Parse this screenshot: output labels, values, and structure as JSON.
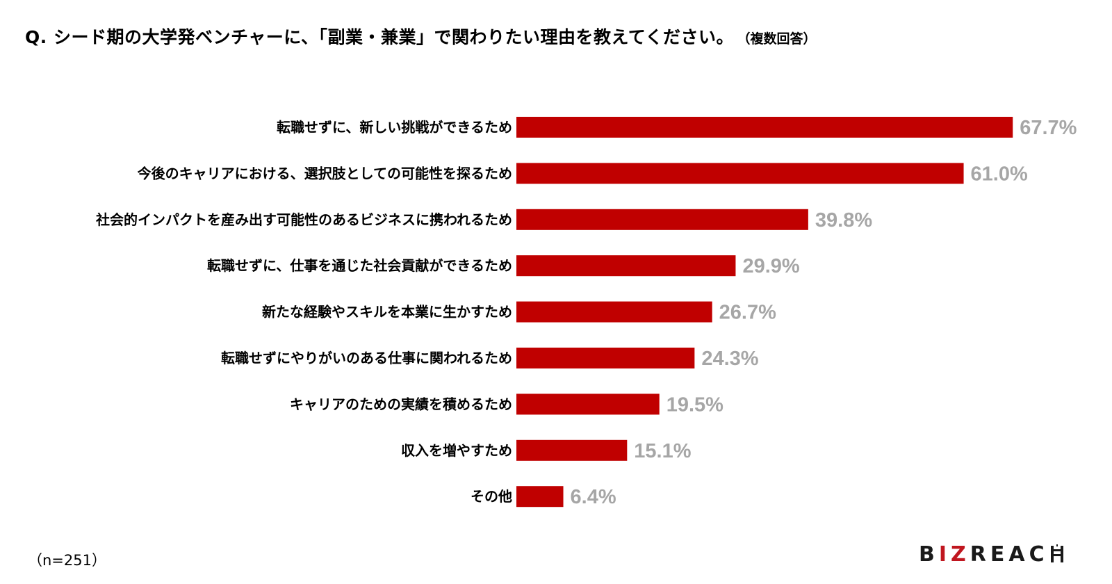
{
  "title": "Q. シード期の大学発ベンチャーに、「副業・兼業」で関わりたい理由を教えてください。",
  "subtitle": "（複数回答）",
  "footnote": "（n=251）",
  "logo_text": {
    "part1": "B",
    "accent": "IZ",
    "part2": "REAC"
  },
  "colors": {
    "bar": "#c00000",
    "value_label": "#a6a6a6",
    "logo_accent": "#c0161f"
  },
  "chart_data": {
    "type": "bar",
    "orientation": "horizontal",
    "categories": [
      "転職せずに、新しい挑戦ができるため",
      "今後のキャリアにおける、選択肢としての可能性を探るため",
      "社会的インパクトを産み出す可能性のあるビジネスに携われるため",
      "転職せずに、仕事を通じた社会貢献ができるため",
      "新たな経験やスキルを本業に生かすため",
      "転職せずにやりがいのある仕事に関われるため",
      "キャリアのための実績を積めるため",
      "収入を増やすため",
      "その他"
    ],
    "values": [
      67.7,
      61.0,
      39.8,
      29.9,
      26.7,
      24.3,
      19.5,
      15.1,
      6.4
    ],
    "value_labels": [
      "67.7%",
      "61.0%",
      "39.8%",
      "29.9%",
      "26.7%",
      "24.3%",
      "19.5%",
      "15.1%",
      "6.4%"
    ],
    "unit": "%",
    "grid": false,
    "legend": "none"
  }
}
